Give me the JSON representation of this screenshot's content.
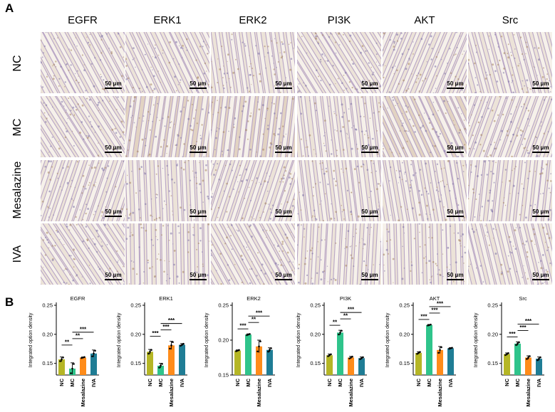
{
  "panel_a_label": "A",
  "panel_b_label": "B",
  "markers": [
    "EGFR",
    "ERK1",
    "ERK2",
    "PI3K",
    "AKT",
    "Src"
  ],
  "groups": [
    "NC",
    "MC",
    "Mesalazine",
    "IVA"
  ],
  "scale_bar_label": "50 μm",
  "chart_data": [
    {
      "type": "bar",
      "title": "EGFR",
      "ylabel": "Integrated option density",
      "categories": [
        "NC",
        "MC",
        "Mesalazine",
        "IVA"
      ],
      "values": [
        0.157,
        0.141,
        0.16,
        0.167
      ],
      "errors": [
        0.004,
        0.01,
        0.001,
        0.006
      ],
      "ylim": [
        0.13,
        0.25
      ],
      "yticks": [
        0.15,
        0.2,
        0.25
      ],
      "significance": [
        {
          "from": 0,
          "to": 1,
          "label": "**"
        },
        {
          "from": 1,
          "to": 2,
          "label": "**"
        },
        {
          "from": 1,
          "to": 3,
          "label": "***"
        }
      ]
    },
    {
      "type": "bar",
      "title": "ERK1",
      "ylabel": "Integrated option density",
      "categories": [
        "NC",
        "MC",
        "Mesalazine",
        "IVA"
      ],
      "values": [
        0.17,
        0.146,
        0.181,
        0.182
      ],
      "errors": [
        0.004,
        0.004,
        0.007,
        0.002
      ],
      "ylim": [
        0.13,
        0.25
      ],
      "yticks": [
        0.15,
        0.2,
        0.25
      ],
      "significance": [
        {
          "from": 0,
          "to": 1,
          "label": "***"
        },
        {
          "from": 1,
          "to": 2,
          "label": "***"
        },
        {
          "from": 1,
          "to": 3,
          "label": "***"
        }
      ]
    },
    {
      "type": "bar",
      "title": "ERK2",
      "ylabel": "Integrated option density",
      "categories": [
        "NC",
        "MC",
        "Mesalazine",
        "IVA"
      ],
      "values": [
        0.185,
        0.208,
        0.191,
        0.186
      ],
      "errors": [
        0.001,
        0.001,
        0.009,
        0.003
      ],
      "ylim": [
        0.15,
        0.25
      ],
      "yticks": [
        0.15,
        0.2,
        0.25
      ],
      "significance": [
        {
          "from": 0,
          "to": 1,
          "label": "***"
        },
        {
          "from": 1,
          "to": 2,
          "label": "**"
        },
        {
          "from": 1,
          "to": 3,
          "label": "***"
        }
      ]
    },
    {
      "type": "bar",
      "title": "PI3K",
      "ylabel": "Integrated option density",
      "categories": [
        "NC",
        "MC",
        "Mesalazine",
        "IVA"
      ],
      "values": [
        0.164,
        0.203,
        0.16,
        0.159
      ],
      "errors": [
        0.002,
        0.004,
        0.002,
        0.002
      ],
      "ylim": [
        0.13,
        0.25
      ],
      "yticks": [
        0.15,
        0.2,
        0.25
      ],
      "significance": [
        {
          "from": 0,
          "to": 1,
          "label": "**"
        },
        {
          "from": 1,
          "to": 2,
          "label": "**"
        },
        {
          "from": 1,
          "to": 3,
          "label": "***"
        }
      ]
    },
    {
      "type": "bar",
      "title": "AKT",
      "ylabel": "Integrated option density",
      "categories": [
        "NC",
        "MC",
        "Mesalazine",
        "IVA"
      ],
      "values": [
        0.168,
        0.216,
        0.173,
        0.176
      ],
      "errors": [
        0.002,
        0.001,
        0.006,
        0.001
      ],
      "ylim": [
        0.13,
        0.25
      ],
      "yticks": [
        0.15,
        0.2,
        0.25
      ],
      "significance": [
        {
          "from": 0,
          "to": 1,
          "label": "***"
        },
        {
          "from": 1,
          "to": 2,
          "label": "***"
        },
        {
          "from": 1,
          "to": 3,
          "label": "***"
        }
      ]
    },
    {
      "type": "bar",
      "title": "Src",
      "ylabel": "Integrated option density",
      "categories": [
        "NC",
        "MC",
        "Mesalazine",
        "IVA"
      ],
      "values": [
        0.166,
        0.184,
        0.16,
        0.158
      ],
      "errors": [
        0.002,
        0.003,
        0.003,
        0.003
      ],
      "ylim": [
        0.13,
        0.25
      ],
      "yticks": [
        0.15,
        0.2,
        0.25
      ],
      "significance": [
        {
          "from": 0,
          "to": 1,
          "label": "***"
        },
        {
          "from": 1,
          "to": 2,
          "label": "***"
        },
        {
          "from": 1,
          "to": 3,
          "label": "***"
        }
      ]
    }
  ],
  "colors": {
    "NC": "#b5b625",
    "MC": "#2fc48b",
    "Mesalazine": "#ff8c1a",
    "IVA": "#1f7d95"
  }
}
